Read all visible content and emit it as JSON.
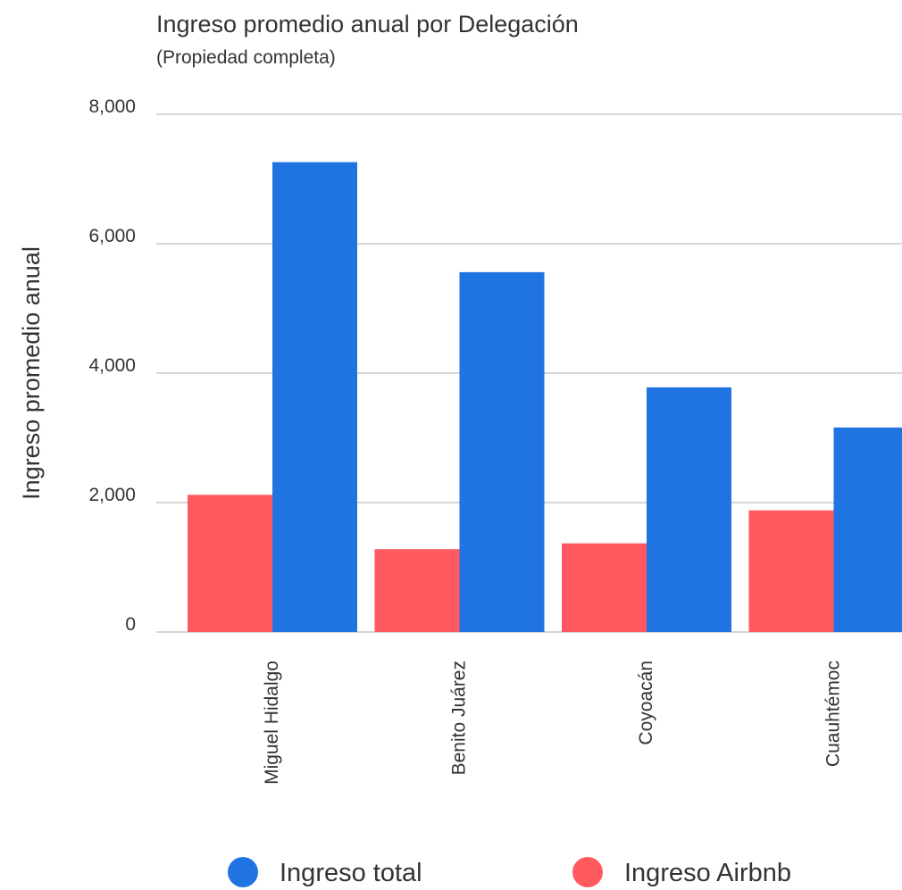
{
  "chart_data": {
    "type": "bar",
    "title": "Ingreso promedio anual por Delegación",
    "subtitle": "(Propiedad completa)",
    "ylabel": "Ingreso promedio anual",
    "categories": [
      "Miguel Hidalgo",
      "Benito Juárez",
      "Coyoacán",
      "Cuauhtémoc"
    ],
    "series": [
      {
        "name": "Ingreso total",
        "color": "#1f74e2",
        "values": [
          7260,
          5560,
          3780,
          3160
        ]
      },
      {
        "name": "Ingreso Airbnb",
        "color": "#ff5a60",
        "values": [
          2120,
          1280,
          1370,
          1880
        ]
      }
    ],
    "ylim": [
      0,
      8000
    ],
    "yticks": [
      0,
      {
        "value": 2000,
        "label": "2,000"
      },
      {
        "value": 4000,
        "label": "4,000"
      },
      {
        "value": 6000,
        "label": "6,000"
      },
      {
        "value": 8000,
        "label": "8,000"
      }
    ],
    "grid": true,
    "legend": "bottom"
  }
}
